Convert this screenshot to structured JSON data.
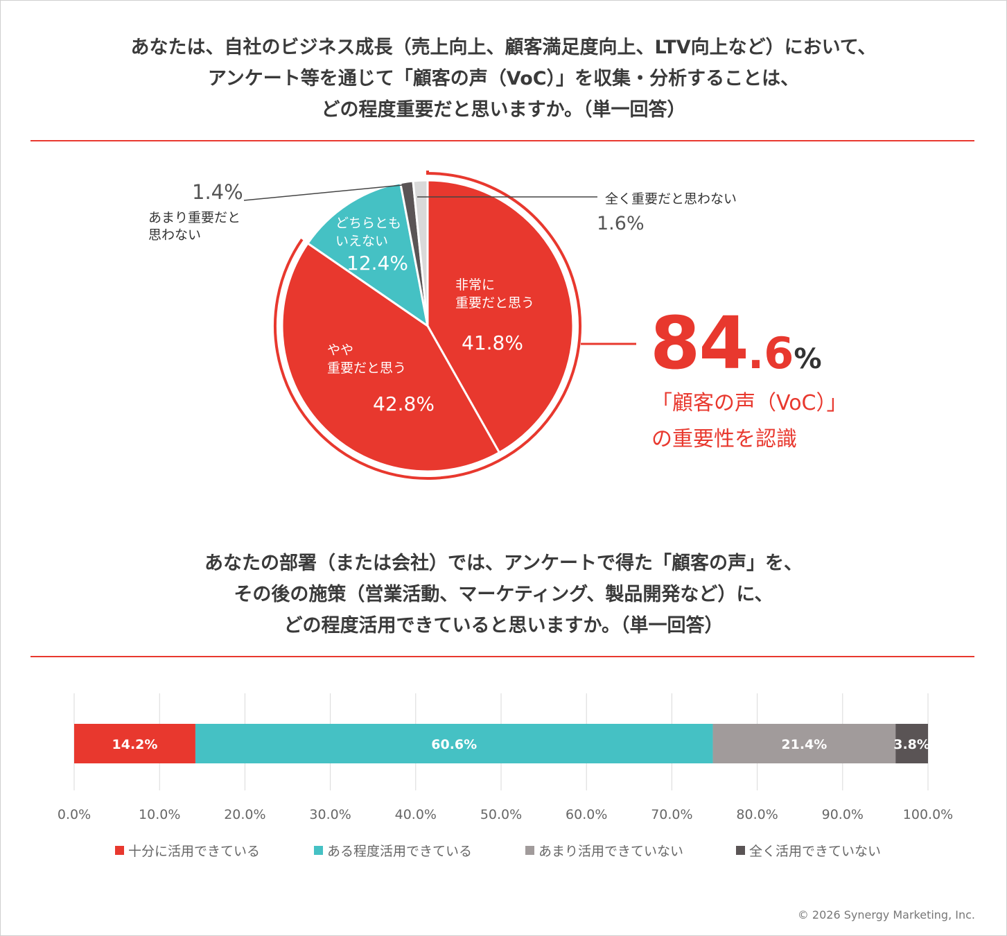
{
  "question1": {
    "lines": [
      "あなたは、自社のビジネス成長（売上向上、顧客満足度向上、LTV向上など）において、",
      "アンケート等を通じて「顧客の声（VoC）」を収集・分析することは、",
      "どの程度重要だと思いますか。（単一回答）"
    ]
  },
  "question2": {
    "lines": [
      "あなたの部署（または会社）では、アンケートで得た「顧客の声」を、",
      "その後の施策（営業活動、マーケティング、製品開発など）に、",
      "どの程度活用できていると思いますか。（単一回答）"
    ]
  },
  "callout": {
    "value_int": "84",
    "value_dec": ".6",
    "value_unit": "%",
    "line1": "「顧客の声（VoC）」",
    "line2": "の重要性を認識"
  },
  "pie_labels": {
    "very_important": {
      "line1": "非常に",
      "line2": "重要だと思う",
      "value": "41.8%"
    },
    "somewhat_important": {
      "line1": "やや",
      "line2": "重要だと思う",
      "value": "42.8%"
    },
    "neutral": {
      "line1": "どちらとも",
      "line2": "いえない",
      "value": "12.4%"
    },
    "not_very": {
      "value": "1.4%",
      "line1": "あまり重要だと",
      "line2": "思わない"
    },
    "not_at_all": {
      "label": "全く重要だと思わない",
      "value": "1.6%"
    }
  },
  "chart_data": [
    {
      "type": "pie",
      "slices": [
        {
          "label": "非常に重要だと思う",
          "value": 41.8,
          "color": "#e8382e"
        },
        {
          "label": "やや重要だと思う",
          "value": 42.8,
          "color": "#e8382e"
        },
        {
          "label": "どちらともいえない",
          "value": 12.4,
          "color": "#45c1c4"
        },
        {
          "label": "あまり重要だと思わない",
          "value": 1.4,
          "color": "#5a5455"
        },
        {
          "label": "全く重要だと思わない",
          "value": 1.6,
          "color": "#d9d9d9"
        }
      ],
      "highlight": {
        "slices": [
          "非常に重要だと思う",
          "やや重要だと思う"
        ],
        "total": "84.6%"
      }
    },
    {
      "type": "bar",
      "orientation": "horizontal",
      "stacked": true,
      "series": [
        {
          "name": "十分に活用できている",
          "values": [
            14.2
          ],
          "label": "14.2%",
          "color": "#e8382e"
        },
        {
          "name": "ある程度活用できている",
          "values": [
            60.6
          ],
          "label": "60.6%",
          "color": "#45c1c4"
        },
        {
          "name": "あまり活用できていない",
          "values": [
            21.4
          ],
          "label": "21.4%",
          "color": "#a19b9b"
        },
        {
          "name": "全く活用できていない",
          "values": [
            3.8
          ],
          "label": "3.8%",
          "color": "#5a5455"
        }
      ],
      "xlim": [
        0,
        100
      ],
      "xticks": [
        "0.0%",
        "10.0%",
        "20.0%",
        "30.0%",
        "40.0%",
        "50.0%",
        "60.0%",
        "70.0%",
        "80.0%",
        "90.0%",
        "100.0%"
      ],
      "grid": true,
      "legend": "bottom"
    }
  ],
  "footer": {
    "copyright": "© 2026 Synergy Marketing, Inc."
  }
}
